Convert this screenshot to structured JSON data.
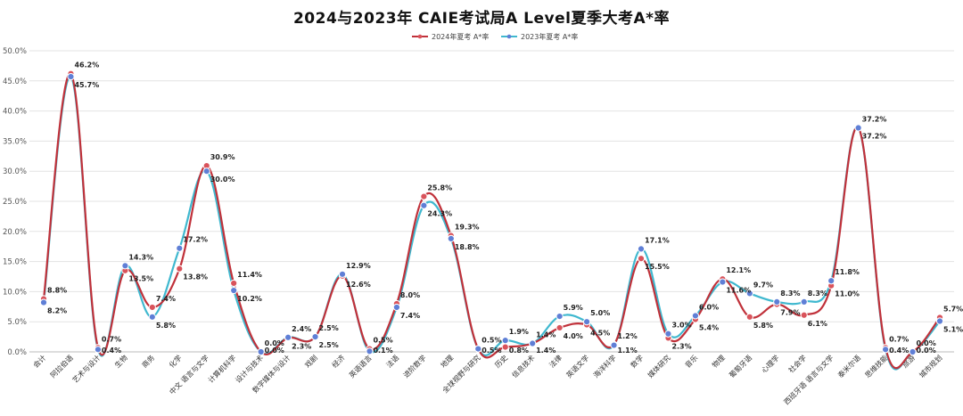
{
  "chart_data": {
    "type": "line",
    "title": "2024与2023年  CAIE考试局A  Level夏季大考A*率",
    "xlabel": "",
    "ylabel": "",
    "ylim": [
      0,
      50
    ],
    "yticks": [
      "0.0%",
      "5.0%",
      "10.0%",
      "15.0%",
      "20.0%",
      "25.0%",
      "30.0%",
      "35.0%",
      "40.0%",
      "45.0%",
      "50.0%"
    ],
    "grid": true,
    "legend_position": "top-center",
    "categories": [
      "会计",
      "阿拉伯语",
      "艺术与设计",
      "生物",
      "商务",
      "化学",
      "中文 语言与文学",
      "计算机科学",
      "设计与技术",
      "数字媒体与设计",
      "戏剧",
      "经济",
      "英语语言",
      "法语",
      "进阶数学",
      "地理",
      "全球视野与研究",
      "历史",
      "信息技术",
      "法律",
      "英语文学",
      "海洋科学",
      "数学",
      "媒体研究",
      "音乐",
      "物理",
      "葡萄牙语",
      "心理学",
      "社会学",
      "西班牙语 语言与文学",
      "泰米尔语",
      "思维技能",
      "旅游",
      "城市规划"
    ],
    "series": [
      {
        "name": "2024年夏考  A*率",
        "color": "#c0313a",
        "values": [
          8.8,
          46.2,
          0.7,
          13.5,
          7.4,
          13.8,
          30.9,
          11.4,
          0.0,
          2.3,
          2.5,
          12.6,
          0.5,
          8.0,
          25.8,
          19.3,
          0.5,
          0.8,
          1.4,
          4.0,
          4.5,
          1.2,
          15.5,
          2.3,
          5.4,
          12.1,
          5.8,
          7.9,
          6.1,
          11.0,
          37.2,
          0.7,
          0.0,
          5.7
        ]
      },
      {
        "name": "2023年夏考  A*率",
        "color": "#3fb8cf",
        "values": [
          8.2,
          45.7,
          0.4,
          14.3,
          5.8,
          17.2,
          30.0,
          10.2,
          0.0,
          2.4,
          2.5,
          12.9,
          0.1,
          7.4,
          24.3,
          18.8,
          0.5,
          1.9,
          1.4,
          5.9,
          5.0,
          1.1,
          17.1,
          3.0,
          6.0,
          11.6,
          9.7,
          8.3,
          8.3,
          11.8,
          37.2,
          0.4,
          0.0,
          5.1
        ]
      }
    ]
  }
}
